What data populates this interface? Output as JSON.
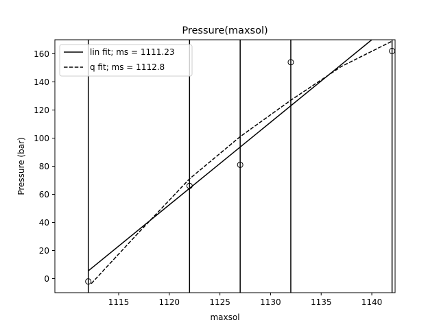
{
  "chart_data": {
    "type": "line",
    "title": "Pressure(maxsol)",
    "xlabel": "maxsol",
    "ylabel": "Pressure (bar)",
    "xlim": [
      1108.7,
      1142.3
    ],
    "ylim": [
      -10,
      170
    ],
    "xticks": [
      1115,
      1120,
      1125,
      1130,
      1135,
      1140
    ],
    "yticks": [
      0,
      20,
      40,
      60,
      80,
      100,
      120,
      140,
      160
    ],
    "grid": false,
    "legend_position": "top-left",
    "vertical_lines": [
      1112,
      1122,
      1127,
      1132,
      1142
    ],
    "observations": {
      "marker": "open-circle",
      "x": [
        1112,
        1122,
        1127,
        1132,
        1142
      ],
      "y": [
        -2,
        66,
        81,
        154,
        162
      ]
    },
    "series": [
      {
        "name": "lin fit; ms = 1111.23",
        "style": "solid",
        "x": [
          1112,
          1140
        ],
        "y": [
          5.5,
          170
        ]
      },
      {
        "name": "q fit; ms = 1112.8",
        "style": "dashed",
        "x": [
          1112.3,
          1117,
          1122,
          1127,
          1132,
          1137,
          1142
        ],
        "y": [
          -3.5,
          33,
          71,
          101,
          127,
          151,
          169
        ]
      }
    ],
    "colors": {
      "line": "#000000",
      "background": "#ffffff"
    }
  }
}
